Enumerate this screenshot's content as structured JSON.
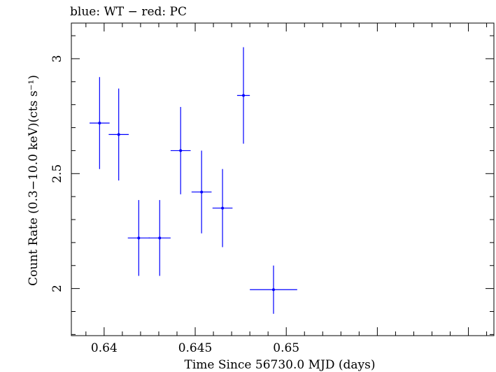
{
  "chart_data": {
    "type": "scatter",
    "title": "blue: WT − red: PC",
    "xlabel": "Time Since 56730.0 MJD (days)",
    "ylabel": "Count Rate (0.3−10.0 keV)(cts s⁻¹)",
    "xlim": [
      0.6382,
      0.6614
    ],
    "ylim": [
      1.795,
      3.155
    ],
    "x_ticks": [
      "0.64",
      "0.645",
      "0.65"
    ],
    "x_tick_values": [
      0.64,
      0.645,
      0.65
    ],
    "y_ticks": [
      "2",
      "2.5",
      "3"
    ],
    "y_tick_values": [
      2,
      2.5,
      3
    ],
    "series": [
      {
        "color": "#0000ff",
        "points": [
          {
            "x": 0.63975,
            "y": 2.72,
            "xerr": 0.00055,
            "yerr": 0.2
          },
          {
            "x": 0.6408,
            "y": 2.67,
            "xerr": 0.00055,
            "yerr": 0.2
          },
          {
            "x": 0.6419,
            "y": 2.22,
            "xerr": 0.0006,
            "yerr": 0.165
          },
          {
            "x": 0.64305,
            "y": 2.22,
            "xerr": 0.0006,
            "yerr": 0.165
          },
          {
            "x": 0.6442,
            "y": 2.6,
            "xerr": 0.00055,
            "yerr": 0.19
          },
          {
            "x": 0.64535,
            "y": 2.42,
            "xerr": 0.00055,
            "yerr": 0.18
          },
          {
            "x": 0.6465,
            "y": 2.35,
            "xerr": 0.00055,
            "yerr": 0.17
          },
          {
            "x": 0.64765,
            "y": 2.84,
            "xerr": 0.00035,
            "yerr": 0.21
          },
          {
            "x": 0.6493,
            "y": 1.995,
            "xerr": 0.0013,
            "yerr": 0.105
          }
        ]
      }
    ]
  }
}
